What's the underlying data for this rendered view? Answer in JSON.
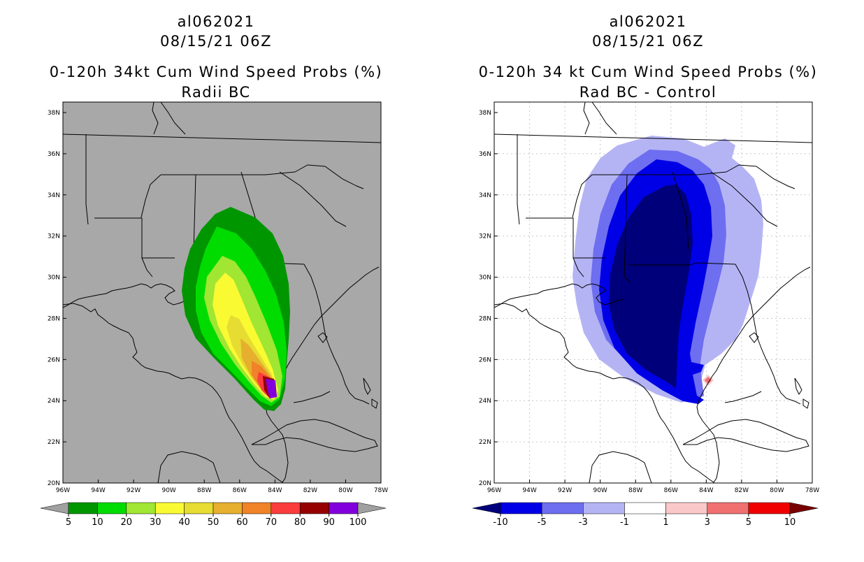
{
  "left_panel": {
    "storm_id": "al062021",
    "datetime": "08/15/21 06Z",
    "product": "0-120h 34kt Cum Wind Speed Probs (%)",
    "subtitle": "Radii BC",
    "colorbar": {
      "labels": [
        "5",
        "10",
        "20",
        "30",
        "40",
        "50",
        "60",
        "70",
        "80",
        "90",
        "100"
      ],
      "colors": [
        "#009600",
        "#00dc00",
        "#a0e632",
        "#fafa32",
        "#e6dc32",
        "#e6af2d",
        "#f08228",
        "#fa3c3c",
        "#960000",
        "#8200dc"
      ],
      "under_color": "#a0a0a0",
      "over_color": "#a0a0a0"
    },
    "map_background": "#a8a8a8"
  },
  "right_panel": {
    "storm_id": "al062021",
    "datetime": "08/15/21 06Z",
    "product": "0-120h 34 kt Cum Wind Speed Probs (%)",
    "subtitle": "Rad BC - Control",
    "colorbar": {
      "labels": [
        "-10",
        "-5",
        "-3",
        "-1",
        "1",
        "3",
        "5",
        "10"
      ],
      "colors": [
        "#0000e6",
        "#6e6ef0",
        "#b4b4f5",
        "#ffffff",
        "#fac8c8",
        "#f07070",
        "#f00000"
      ],
      "under_color": "#00007a",
      "over_color": "#7a0000"
    },
    "map_background": "#ffffff"
  },
  "axes": {
    "lat_labels": [
      "38N",
      "36N",
      "34N",
      "32N",
      "30N",
      "28N",
      "26N",
      "24N",
      "22N",
      "20N"
    ],
    "lon_labels": [
      "96W",
      "94W",
      "92W",
      "90W",
      "88W",
      "86W",
      "84W",
      "82W",
      "80W",
      "78W"
    ]
  }
}
